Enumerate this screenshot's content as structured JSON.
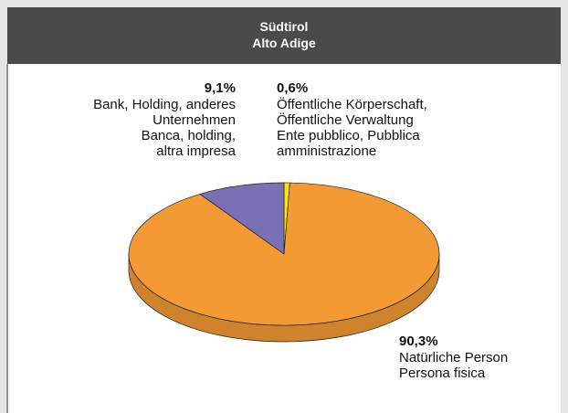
{
  "chart_data": {
    "type": "pie",
    "title": "Südtirol",
    "subtitle": "Alto Adige",
    "categories": [
      "Öffentliche Körperschaft,\nÖffentliche Verwaltung\nEnte pubblico, Pubblica\namministrazione",
      "Natürliche Person\nPersona fisica",
      "Bank, Holding, anderes\nUnternehmen\nBanca, holding,\naltra impresa"
    ],
    "values": [
      0.6,
      90.3,
      9.1
    ],
    "value_labels": [
      "0,6%",
      "90,3%",
      "9,1%"
    ],
    "colors": [
      "#ffe600",
      "#f39a35",
      "#7a70b6"
    ]
  }
}
